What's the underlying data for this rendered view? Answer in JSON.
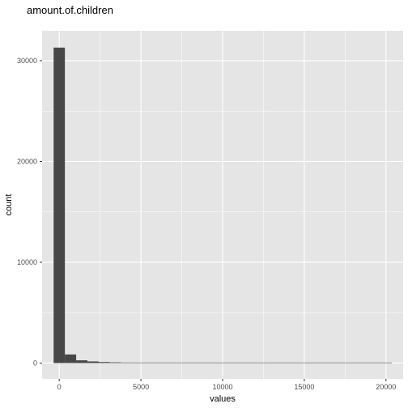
{
  "chart_data": {
    "type": "bar",
    "title": "amount.of.children",
    "xlabel": "values",
    "ylabel": "count",
    "x_ticks": [
      0,
      5000,
      10000,
      15000,
      20000
    ],
    "y_ticks": [
      0,
      10000,
      20000,
      30000
    ],
    "xlim": [
      -1050,
      21050
    ],
    "ylim": [
      -1570,
      32970
    ],
    "bin_width": 690,
    "bins": [
      {
        "center": 0,
        "count": 31300
      },
      {
        "center": 690,
        "count": 850
      },
      {
        "center": 1380,
        "count": 270
      },
      {
        "center": 2070,
        "count": 160
      },
      {
        "center": 2760,
        "count": 100
      },
      {
        "center": 3450,
        "count": 70
      },
      {
        "center": 4140,
        "count": 45
      },
      {
        "center": 4830,
        "count": 35
      },
      {
        "center": 5520,
        "count": 25
      },
      {
        "center": 6210,
        "count": 20
      },
      {
        "center": 6900,
        "count": 15
      },
      {
        "center": 7590,
        "count": 12
      },
      {
        "center": 8280,
        "count": 10
      },
      {
        "center": 8970,
        "count": 8
      },
      {
        "center": 9660,
        "count": 7
      },
      {
        "center": 10350,
        "count": 6
      },
      {
        "center": 11040,
        "count": 5
      },
      {
        "center": 11730,
        "count": 4
      },
      {
        "center": 12420,
        "count": 4
      },
      {
        "center": 13110,
        "count": 3
      },
      {
        "center": 13800,
        "count": 3
      },
      {
        "center": 14490,
        "count": 2
      },
      {
        "center": 15180,
        "count": 2
      },
      {
        "center": 15870,
        "count": 2
      },
      {
        "center": 16560,
        "count": 1
      },
      {
        "center": 17250,
        "count": 1
      },
      {
        "center": 17940,
        "count": 1
      },
      {
        "center": 18630,
        "count": 1
      },
      {
        "center": 19320,
        "count": 1
      },
      {
        "center": 20010,
        "count": 1
      }
    ],
    "colors": {
      "panel": "#e5e5e5",
      "grid": "#ffffff",
      "bar": "#474747",
      "tick": "#333333"
    },
    "grid": true,
    "legend": "none"
  }
}
